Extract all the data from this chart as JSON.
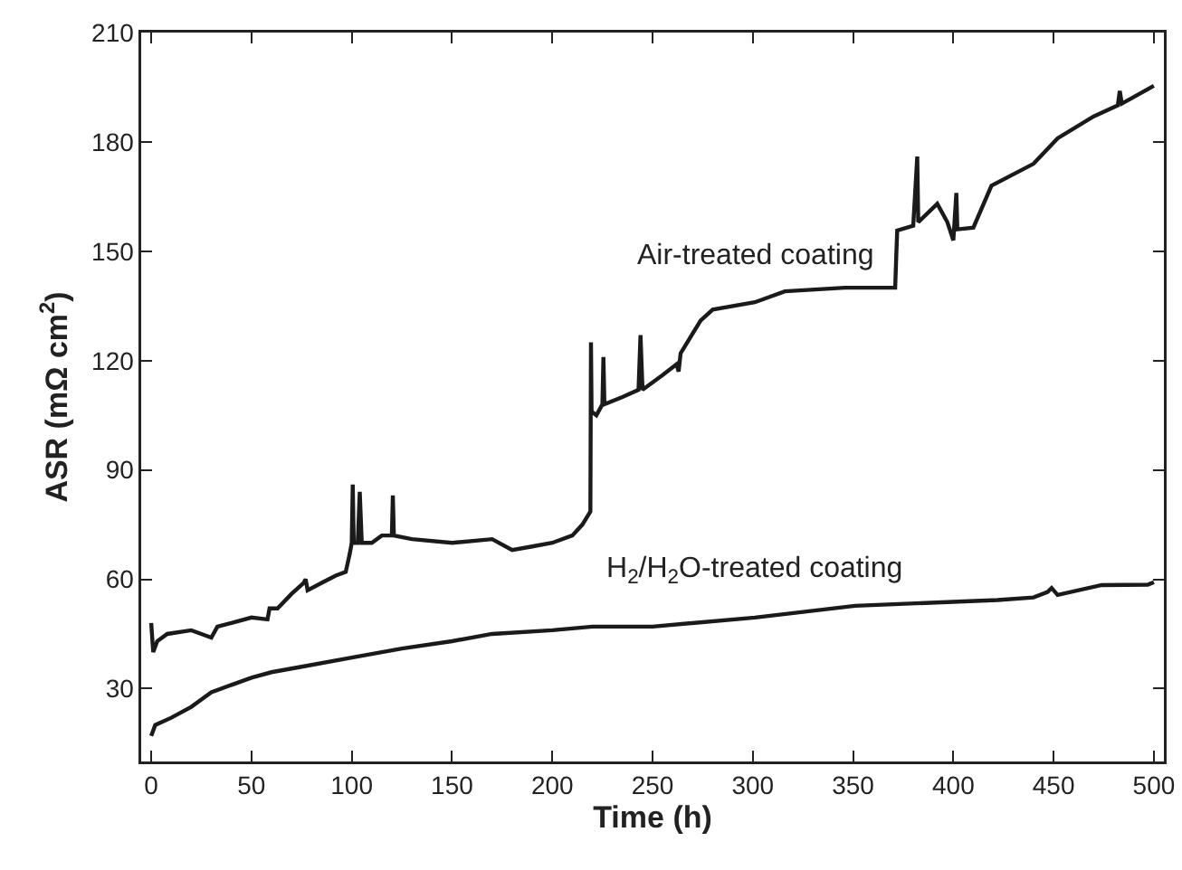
{
  "chart_data": {
    "type": "line",
    "xlabel": "Time (h)",
    "ylabel": "ASR (mΩ cm$^{2}$)",
    "xlim": [
      -5,
      505
    ],
    "xticks": [
      0,
      50,
      100,
      150,
      200,
      250,
      300,
      350,
      400,
      450,
      500
    ],
    "ylim": [
      10,
      210
    ],
    "yticks": [
      30,
      60,
      90,
      120,
      150,
      180,
      210
    ],
    "grid": false,
    "legend": false,
    "marker": "none",
    "line_style": "solid",
    "series": [
      {
        "name": "Air-treated coating",
        "color": "#1a1a1a",
        "x": [
          0,
          0.5,
          1,
          3,
          8,
          20,
          25,
          30,
          33,
          40,
          50,
          58,
          59,
          63,
          70,
          76,
          77,
          78,
          85,
          92,
          97,
          99,
          100,
          100.5,
          101,
          103,
          104,
          105,
          110,
          115,
          120,
          120.5,
          121,
          130,
          150,
          170,
          180,
          190,
          200,
          210,
          215,
          219,
          219.3,
          219.6,
          222,
          225,
          225.5,
          226,
          235,
          243,
          244,
          245,
          255,
          262,
          263,
          264,
          274,
          280,
          301,
          316,
          346,
          371,
          371.5,
          372,
          380,
          382,
          382.5,
          392,
          397,
          400,
          401.5,
          402,
          410,
          419,
          440,
          452,
          470,
          482,
          483,
          484,
          500
        ],
        "values": [
          48,
          44,
          40,
          43,
          45,
          46,
          45,
          44,
          47,
          48,
          49.5,
          49,
          52,
          52,
          56,
          59,
          60,
          57,
          59,
          61,
          62,
          67,
          70,
          86,
          70,
          70,
          84,
          70,
          70,
          72,
          72,
          83,
          72,
          71,
          70,
          71,
          68,
          69,
          70,
          72,
          75,
          78.6,
          125,
          106,
          105,
          108,
          121,
          108,
          110,
          112,
          127,
          112,
          116,
          119,
          117,
          122,
          131,
          134,
          136,
          139,
          140,
          140,
          148,
          155.7,
          157,
          176,
          158,
          163,
          158,
          153,
          166,
          156,
          156.5,
          168,
          174,
          181,
          187,
          190,
          194,
          190.5,
          195.4
        ]
      },
      {
        "name": "H$_{2}$/H$_{2}$O-treated coating",
        "color": "#1a1a1a",
        "x": [
          0,
          2,
          10,
          20,
          25,
          30,
          40,
          50,
          60,
          75,
          100,
          125,
          150,
          170,
          200,
          220,
          250,
          301,
          351,
          422,
          440,
          447,
          449,
          452,
          474,
          497,
          500
        ],
        "values": [
          17,
          20,
          22,
          25,
          27,
          29,
          31,
          33,
          34.5,
          36,
          38.5,
          41,
          43,
          45,
          46,
          47,
          47,
          49.5,
          52.7,
          54.3,
          55,
          56.5,
          57.6,
          55.7,
          58.4,
          58.5,
          59.2
        ]
      }
    ]
  }
}
